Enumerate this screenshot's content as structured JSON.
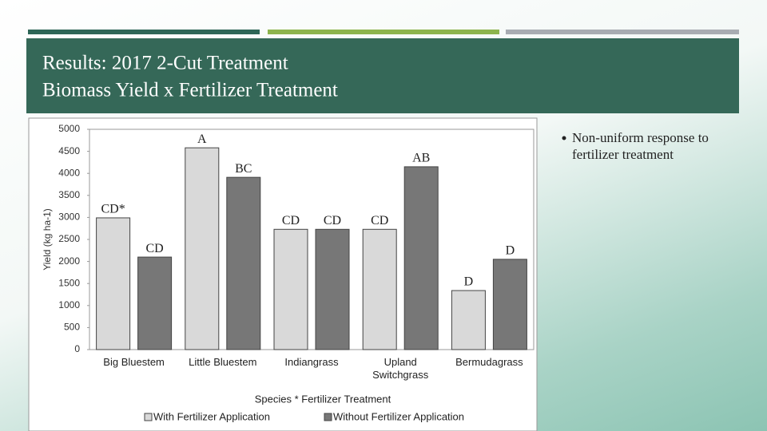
{
  "slide": {
    "title_lines": [
      "Results:  2017 2-Cut Treatment",
      "Biomass Yield x Fertilizer Treatment"
    ],
    "bullets": [
      "Non-uniform response to fertilizer treatment"
    ]
  },
  "chart_data": {
    "type": "bar",
    "x_label": "Species * Fertilizer Treatment",
    "y_label": "Yield (kg ha-1)",
    "categories": [
      "Big Bluestem",
      "Little Bluestem",
      "Indiangrass",
      "Upland Switchgrass",
      "Bermudagrass"
    ],
    "series": [
      {
        "name": "With Fertilizer Application",
        "color": "#d9d9d9",
        "values": [
          2990,
          4580,
          2730,
          2730,
          1340
        ],
        "letters": [
          "CD*",
          "A",
          "CD",
          "CD",
          "D"
        ]
      },
      {
        "name": "Without Fertilizer Application",
        "color": "#777777",
        "values": [
          2100,
          3910,
          2730,
          4150,
          2050
        ],
        "letters": [
          "CD",
          "BC",
          "CD",
          "AB",
          "D"
        ]
      }
    ],
    "ylim": [
      0,
      5000
    ],
    "yticks": [
      0,
      500,
      1000,
      1500,
      2000,
      2500,
      3000,
      3500,
      4000,
      4500,
      5000
    ],
    "grid": false,
    "legend": "bottom"
  }
}
